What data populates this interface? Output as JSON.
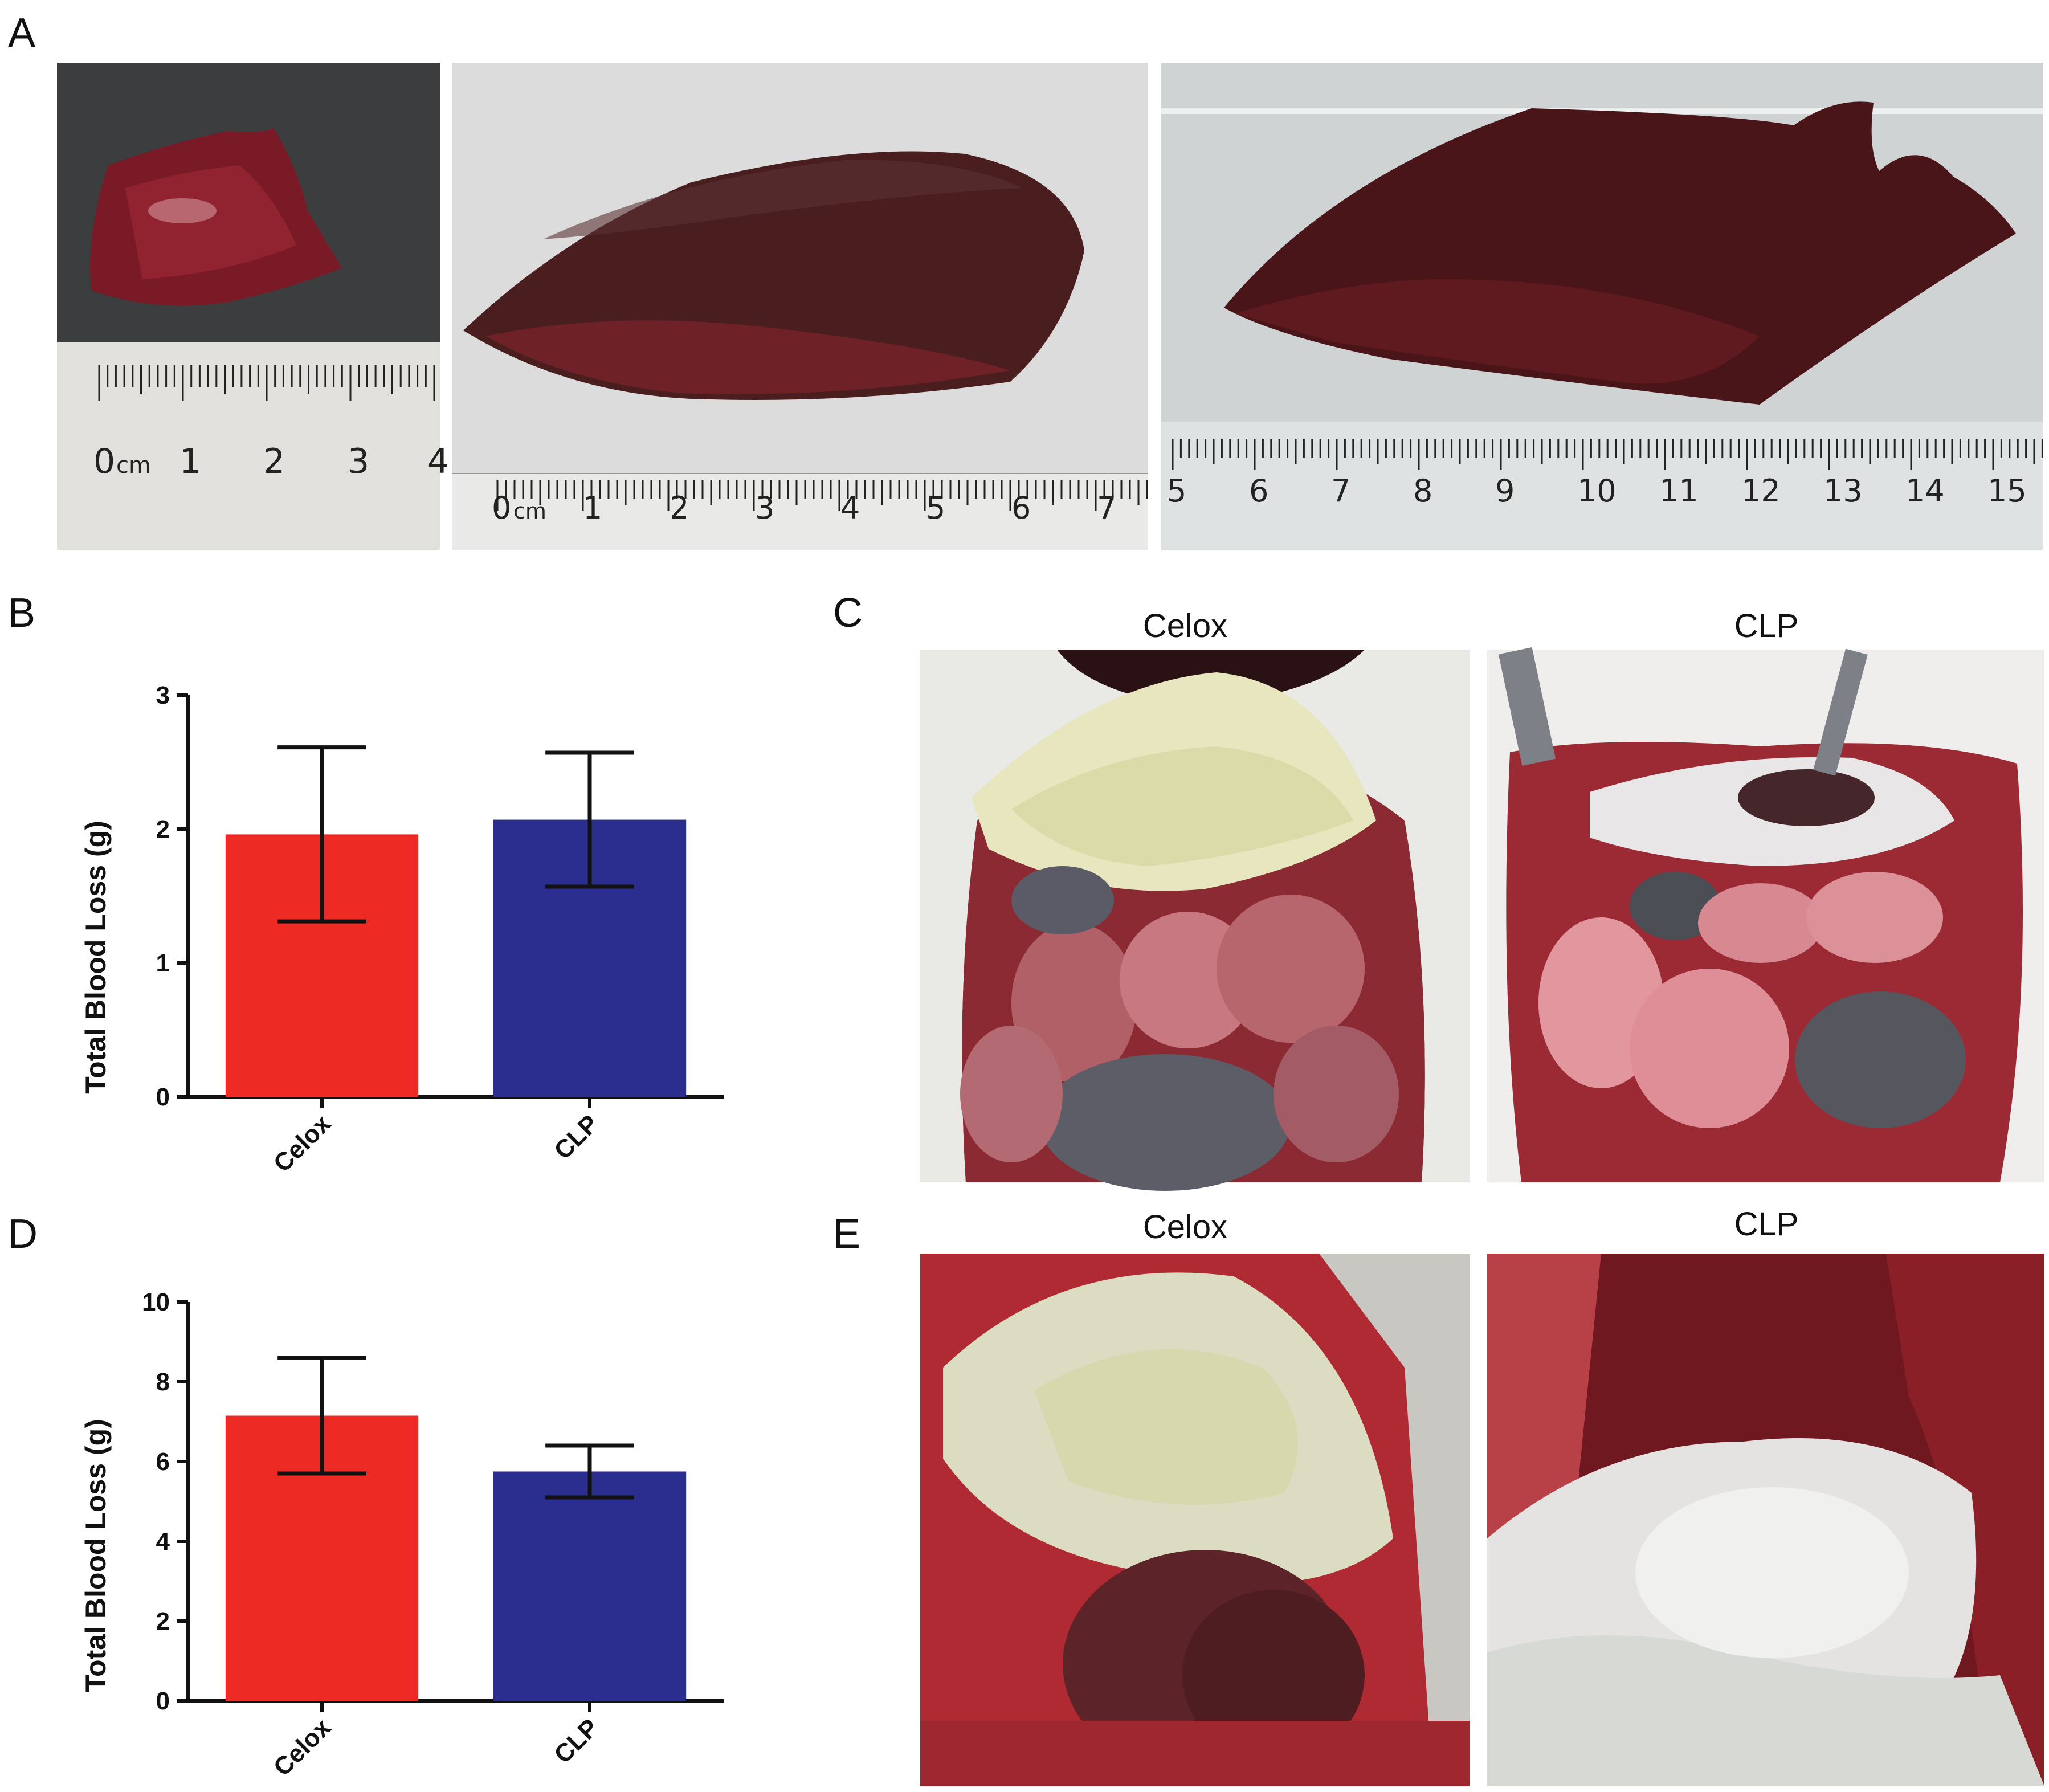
{
  "panels": {
    "A": "A",
    "B": "B",
    "C": "C",
    "D": "D",
    "E": "E"
  },
  "photos_a": {
    "left_ruler_labels": [
      "0",
      "cm",
      "1",
      "2",
      "3",
      "4"
    ],
    "middle_ruler_labels": [
      "0",
      "cm",
      "1",
      "2",
      "3",
      "4",
      "5",
      "6",
      "7"
    ],
    "right_ruler_labels": [
      "5",
      "6",
      "7",
      "8",
      "9",
      "10",
      "11",
      "12",
      "13",
      "14",
      "15"
    ]
  },
  "photos_c": {
    "left_title": "Celox",
    "right_title": "CLP"
  },
  "photos_e": {
    "left_title": "Celox",
    "right_title": "CLP"
  },
  "colors": {
    "celox": "#ee2a24",
    "clp": "#2b2e8e"
  },
  "chart_data": [
    {
      "type": "bar",
      "categories": [
        "Celox",
        "CLP"
      ],
      "values": [
        1.96,
        2.07
      ],
      "errors": [
        0.65,
        0.5
      ],
      "ylabel": "Total Blood Loss (g)",
      "xlabel": "",
      "ylim": [
        0,
        3
      ],
      "yticks": [
        "0",
        "1",
        "2",
        "3"
      ],
      "colors": [
        "#ee2a24",
        "#2b2e8e"
      ]
    },
    {
      "type": "bar",
      "categories": [
        "Celox",
        "CLP"
      ],
      "values": [
        7.15,
        5.75
      ],
      "errors": [
        1.45,
        0.65
      ],
      "ylabel": "Total Blood Loss (g)",
      "xlabel": "",
      "ylim": [
        0,
        10
      ],
      "yticks": [
        "0",
        "2",
        "4",
        "6",
        "8",
        "10"
      ],
      "colors": [
        "#ee2a24",
        "#2b2e8e"
      ]
    }
  ]
}
